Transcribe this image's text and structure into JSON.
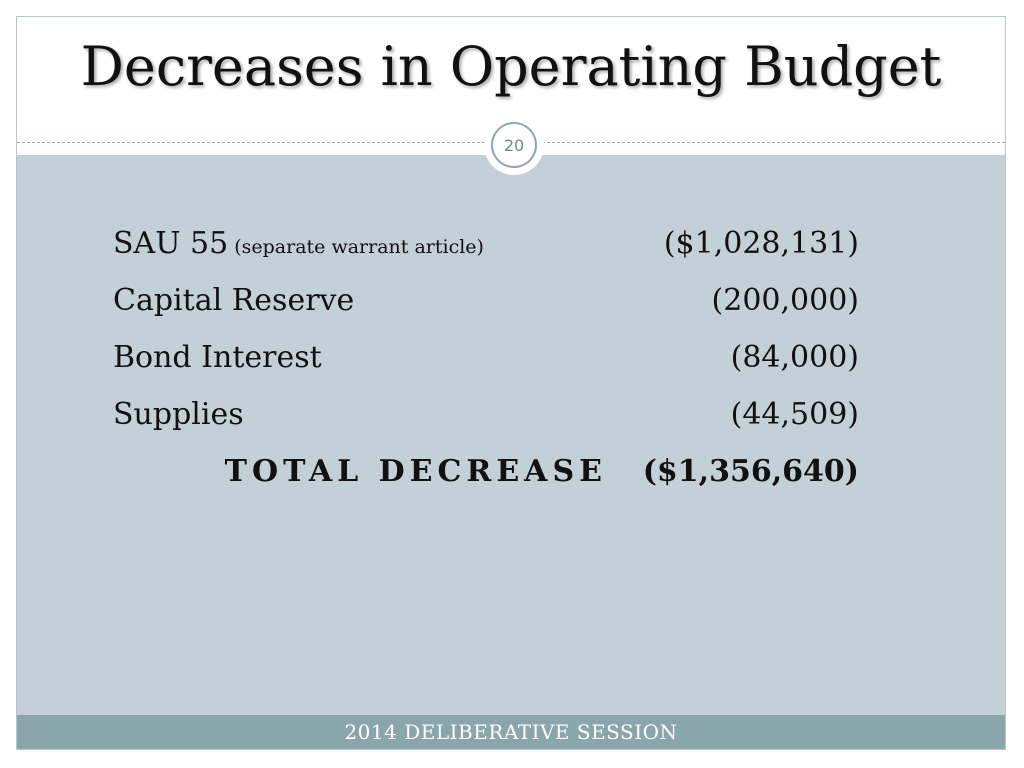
{
  "slide": {
    "title": "Decreases in Operating Budget",
    "page_number": "20",
    "footer": "2014 DELIBERATIVE SESSION"
  },
  "items": [
    {
      "label": "SAU 55",
      "note": "(separate warrant article)",
      "amount": "($1,028,131)"
    },
    {
      "label": "Capital Reserve",
      "note": "",
      "amount": "(200,000)"
    },
    {
      "label": "Bond Interest",
      "note": "",
      "amount": "(84,000)"
    },
    {
      "label": "Supplies",
      "note": "",
      "amount": "(44,509)"
    }
  ],
  "total": {
    "label": "TOTAL DECREASE",
    "amount": "($1,356,640)"
  },
  "colors": {
    "body_panel": "#c4d0d7",
    "footer_bar": "#8aa6aa",
    "badge_ring": "#8fa8ad"
  }
}
